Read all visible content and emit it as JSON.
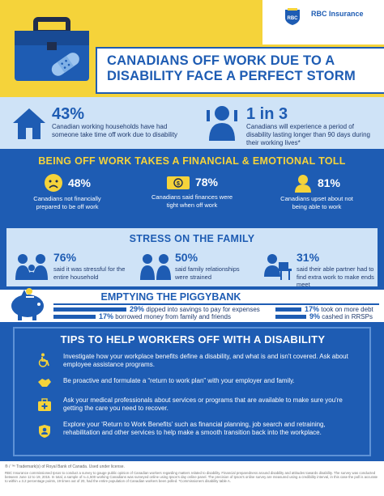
{
  "brand": {
    "name": "RBC Insurance",
    "logo_text": "RBC"
  },
  "headline": {
    "line1": "CANADIANS OFF WORK DUE TO A",
    "line2": "DISABILITY FACE A PERFECT STORM"
  },
  "stats_top": [
    {
      "value": "43%",
      "text": "Canadian working households have had someone take time off work due to disability"
    },
    {
      "value": "1 in 3",
      "text": "Canadians will experience a period of disability lasting longer than 90 days during their working lives*"
    }
  ],
  "financial": {
    "title": "BEING OFF WORK TAKES A FINANCIAL & EMOTIONAL TOLL",
    "items": [
      {
        "value": "48%",
        "text": "Canadians not financially prepared to be off work",
        "icon": "sad-face-icon"
      },
      {
        "value": "78%",
        "text": "Canadians said finances were tight when off work",
        "icon": "money-icon"
      },
      {
        "value": "81%",
        "text": "Canadians upset about not being able to work",
        "icon": "upset-person-icon"
      }
    ]
  },
  "family": {
    "title": "STRESS ON THE FAMILY",
    "items": [
      {
        "value": "76%",
        "text": "said it was stressful for the entire household",
        "icon": "family-icon"
      },
      {
        "value": "50%",
        "text": "said family relationships were strained",
        "icon": "couple-icon"
      },
      {
        "value": "31%",
        "text": "said their able partner had to find extra work to make ends meet",
        "icon": "worker-icon"
      }
    ]
  },
  "piggybank": {
    "title": "EMPTYING THE PIGGYBANK",
    "items": [
      {
        "value": "29%",
        "text": "dipped into savings to pay for expenses",
        "share": 0.29
      },
      {
        "value": "17%",
        "text": "took on more debt",
        "share": 0.17
      },
      {
        "value": "17%",
        "text": "borrowed money from family and friends",
        "share": 0.17
      },
      {
        "value": "9%",
        "text": "cashed in RRSPs",
        "share": 0.09
      }
    ]
  },
  "tips": {
    "title": "TIPS TO HELP WORKERS OFF WITH A DISABILITY",
    "items": [
      {
        "text": "Investigate how your workplace benefits define a disability, and what is and isn't covered. Ask about employee assistance programs.",
        "icon": "wheelchair-icon"
      },
      {
        "text": "Be proactive and formulate a “return to work plan” with your employer and family.",
        "icon": "handshake-icon"
      },
      {
        "text": "Ask your medical professionals about services or programs that are available to make sure you're getting the care you need to recover.",
        "icon": "medical-kit-icon"
      },
      {
        "text": "Explore your ‘Return to Work Benefits’ such as financial planning, job search and retraining, rehabilitation and other services to help make a smooth transition back into the workplace.",
        "icon": "shield-person-icon"
      }
    ]
  },
  "footer": {
    "trademark": "® / ™ Trademark(s) of Royal Bank of Canada. Used under license.",
    "methodology": "RBC Insurance commissioned Ipsos to conduct a survey to gauge public opinion of Canadian workers regarding matters related to disability. Financial preparedness around disability and attitudes towards disability. The survey was conducted between June 12 to 19, 2015. In total, a sample of n=1,500 working Canadians was surveyed online using Ipsos's day online panel. The precision of Ipsos's online survey are measured using a credibility interval, in this case the poll is accurate to within ± 3.2 percentage points, 19 times out of 20, had the entire population of Canadian workers been polled. *Commissioners disability table A."
  },
  "colors": {
    "blue": "#1e5cb3",
    "yellow": "#f5d33a",
    "light_blue": "#cfe3f7",
    "navy": "#1f3a6e"
  }
}
